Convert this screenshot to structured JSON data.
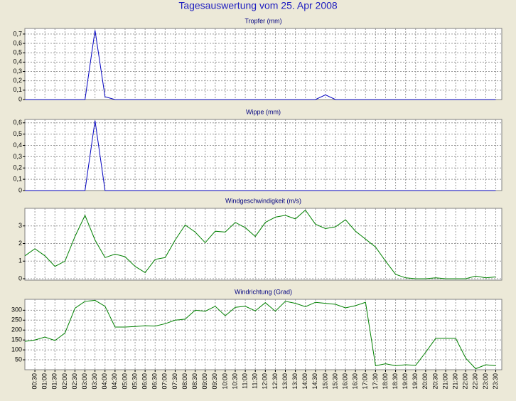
{
  "title": "Tagesauswertung vom 25. Apr 2008",
  "chart_data": [
    {
      "type": "line",
      "title": "Tropfer (mm)",
      "color": "#0000c0",
      "grid": true,
      "ylim": [
        0,
        0.76
      ],
      "yticks": [
        0,
        {
          "value": 0.1,
          "label": "0,1"
        },
        {
          "value": 0.2,
          "label": "0,2"
        },
        {
          "value": 0.3,
          "label": "0,3"
        },
        {
          "value": 0.4,
          "label": "0,4"
        },
        {
          "value": 0.5,
          "label": "0,5"
        },
        {
          "value": 0.6,
          "label": "0,6"
        },
        {
          "value": 0.7,
          "label": "0,7"
        }
      ],
      "values": [
        0,
        0,
        0,
        0,
        0,
        0,
        0,
        0.74,
        0.03,
        0,
        0,
        0,
        0,
        0,
        0,
        0,
        0,
        0,
        0,
        0,
        0,
        0,
        0,
        0,
        0,
        0,
        0,
        0,
        0,
        0,
        0.05,
        0,
        0,
        0,
        0,
        0,
        0,
        0,
        0,
        0,
        0,
        0,
        0,
        0,
        0,
        0,
        0,
        0
      ]
    },
    {
      "type": "line",
      "title": "Wippe (mm)",
      "color": "#0000c0",
      "grid": true,
      "ylim": [
        0,
        0.63
      ],
      "yticks": [
        0,
        {
          "value": 0.1,
          "label": "0,1"
        },
        {
          "value": 0.2,
          "label": "0,2"
        },
        {
          "value": 0.3,
          "label": "0,3"
        },
        {
          "value": 0.4,
          "label": "0,4"
        },
        {
          "value": 0.5,
          "label": "0,5"
        },
        {
          "value": 0.6,
          "label": "0,6"
        }
      ],
      "values": [
        0,
        0,
        0,
        0,
        0,
        0,
        0,
        0.62,
        0,
        0,
        0,
        0,
        0,
        0,
        0,
        0,
        0,
        0,
        0,
        0,
        0,
        0,
        0,
        0,
        0,
        0,
        0,
        0,
        0,
        0,
        0,
        0,
        0,
        0,
        0,
        0,
        0,
        0,
        0,
        0,
        0,
        0,
        0,
        0,
        0,
        0,
        0,
        0
      ]
    },
    {
      "type": "line",
      "title": "Windgeschwindigkeit (m/s)",
      "color": "#008000",
      "grid": true,
      "ylim": [
        -0.08,
        4
      ],
      "yticks": [
        0,
        1,
        2,
        3
      ],
      "values": [
        1.3,
        1.7,
        1.3,
        0.7,
        1.0,
        2.4,
        3.6,
        2.2,
        1.2,
        1.4,
        1.25,
        0.7,
        0.35,
        1.1,
        1.2,
        2.2,
        3.05,
        2.65,
        2.05,
        2.7,
        2.65,
        3.2,
        2.9,
        2.4,
        3.2,
        3.5,
        3.6,
        3.4,
        3.9,
        3.1,
        2.85,
        2.95,
        3.35,
        2.7,
        2.25,
        1.8,
        1.0,
        0.25,
        0.05,
        0,
        0,
        0.05,
        0,
        0,
        0,
        0.15,
        0.05,
        0.1
      ]
    },
    {
      "type": "line",
      "title": "Windrichtung (Grad)",
      "color": "#008000",
      "grid": true,
      "ylim": [
        0,
        355
      ],
      "yticks": [
        50,
        100,
        150,
        200,
        250,
        300
      ],
      "categories": [
        null,
        "00:30",
        "01:00",
        "01:30",
        "02:00",
        "02:30",
        "03:00",
        "03:30",
        "04:00",
        "04:30",
        "05:00",
        "05:30",
        "06:00",
        "06:30",
        "07:00",
        "07:30",
        "08:00",
        "08:30",
        "09:00",
        "09:30",
        "10:00",
        "10:30",
        "11:00",
        "11:30",
        "12:00",
        "12:30",
        "13:00",
        "13:30",
        "14:00",
        "14:30",
        "15:00",
        "15:30",
        "16:00",
        "16:30",
        "17:00",
        "17:30",
        "18:00",
        "18:30",
        "19:00",
        "19:30",
        "20:00",
        "20:30",
        "21:00",
        "21:30",
        "22:00",
        "22:30",
        "23:00",
        "23:30"
      ],
      "values": [
        143,
        150,
        165,
        147,
        185,
        310,
        345,
        350,
        320,
        215,
        215,
        218,
        222,
        220,
        232,
        250,
        255,
        300,
        295,
        320,
        272,
        315,
        320,
        297,
        338,
        295,
        345,
        335,
        318,
        340,
        335,
        330,
        312,
        323,
        340,
        20,
        30,
        20,
        25,
        22,
        88,
        158,
        158,
        158,
        58,
        5,
        25,
        20
      ]
    }
  ]
}
